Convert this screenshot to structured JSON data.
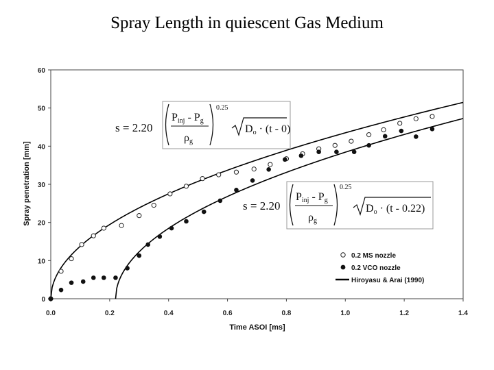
{
  "slide_title": "Spray Length in quiescent Gas Medium",
  "chart_data": {
    "type": "scatter",
    "title": "",
    "xlabel": "Time ASOI [ms]",
    "ylabel": "Spray penetration [mm]",
    "xlim": [
      0.0,
      1.4
    ],
    "ylim": [
      0,
      60
    ],
    "x_ticks": [
      "0.0",
      "0.2",
      "0.4",
      "0.6",
      "0.8",
      "1.0",
      "1.2",
      "1.4"
    ],
    "y_ticks": [
      "0",
      "10",
      "20",
      "30",
      "40",
      "50",
      "60"
    ],
    "grid": false,
    "legend_position": "bottom-right",
    "series": [
      {
        "name": "0.2 MS nozzle",
        "marker": "open-circle",
        "color": "#111111",
        "x": [
          0.0,
          0.035,
          0.07,
          0.105,
          0.145,
          0.18,
          0.24,
          0.3,
          0.35,
          0.405,
          0.46,
          0.515,
          0.57,
          0.63,
          0.69,
          0.745,
          0.8,
          0.855,
          0.91,
          0.965,
          1.02,
          1.08,
          1.13,
          1.185,
          1.24,
          1.295
        ],
        "y": [
          0,
          7.2,
          10.5,
          14.2,
          16.5,
          18.5,
          19.2,
          21.8,
          24.5,
          27.5,
          29.5,
          31.5,
          32.5,
          33.2,
          34.0,
          35.2,
          36.7,
          38.0,
          39.3,
          40.2,
          41.3,
          43.0,
          44.3,
          46.0,
          47.2,
          47.8
        ]
      },
      {
        "name": "0.2 VCO nozzle",
        "marker": "filled-circle",
        "color": "#111111",
        "x": [
          0.0,
          0.035,
          0.07,
          0.11,
          0.145,
          0.18,
          0.22,
          0.26,
          0.3,
          0.33,
          0.37,
          0.41,
          0.46,
          0.52,
          0.575,
          0.63,
          0.685,
          0.74,
          0.795,
          0.85,
          0.91,
          0.97,
          1.03,
          1.08,
          1.135,
          1.19,
          1.24,
          1.295
        ],
        "y": [
          0,
          2.3,
          4.2,
          4.5,
          5.5,
          5.5,
          5.5,
          8.0,
          11.3,
          14.2,
          16.3,
          18.5,
          20.3,
          22.8,
          25.7,
          28.5,
          31.0,
          33.9,
          36.5,
          37.5,
          38.5,
          38.5,
          38.5,
          40.2,
          42.6,
          44.0,
          42.5,
          44.5
        ]
      },
      {
        "name": "Hiroyasu & Arai (1990)",
        "type": "line",
        "color": "#000000",
        "curves": [
          {
            "t0": 0.0,
            "k": 43.5
          },
          {
            "t0": 0.22,
            "k": 43.5
          }
        ]
      }
    ],
    "equations": [
      {
        "label": "s = 2.20",
        "numerator": "P",
        "numerator_sub1": "inj",
        "minus": " - P",
        "numerator_sub2": "g",
        "denominator": "ρ",
        "denominator_sub": "g",
        "exponent": "0.25",
        "root": "D",
        "root_sub": "o",
        "root_tail": " · (t - 0)"
      },
      {
        "label": "s = 2.20",
        "numerator": "P",
        "numerator_sub1": "inj",
        "minus": " - P",
        "numerator_sub2": "g",
        "denominator": "ρ",
        "denominator_sub": "g",
        "exponent": "0.25",
        "root": "D",
        "root_sub": "o",
        "root_tail": " · (t - 0.22)"
      }
    ]
  }
}
